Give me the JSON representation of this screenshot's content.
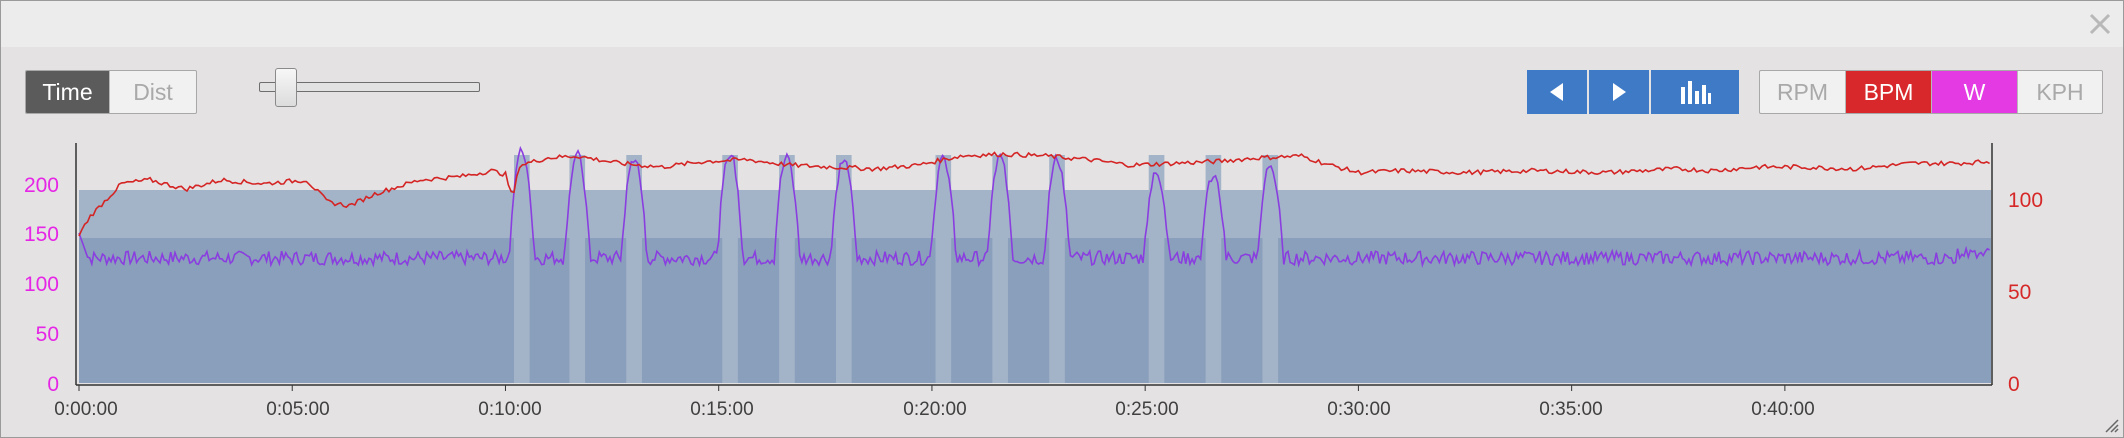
{
  "window": {
    "close_icon": "close-icon"
  },
  "mode_toggle": {
    "time_label": "Time",
    "dist_label": "Dist",
    "selected": "Time"
  },
  "zoom_slider": {
    "value": 0.1
  },
  "nav": {
    "prev_icon": "triangle-left-icon",
    "next_icon": "triangle-right-icon",
    "bars_icon": "bar-chart-icon"
  },
  "metrics": {
    "rpm_label": "RPM",
    "bpm_label": "BPM",
    "w_label": "W",
    "kph_label": "KPH",
    "active": [
      "BPM",
      "W"
    ]
  },
  "colors": {
    "power_line": "#8a3ee0",
    "hr_line": "#d42424",
    "power_axis": "#e626e6",
    "hr_axis": "#d62828",
    "zone_light": "#a3b3c8",
    "zone_dark": "#8a9fbb",
    "nav_blue": "#3f7ac6"
  },
  "chart_data": {
    "type": "line",
    "x_label_format": "h:mm:ss",
    "xlim": [
      0,
      2690
    ],
    "x_ticks": [
      "0:00:00",
      "0:05:00",
      "0:10:00",
      "0:15:00",
      "0:20:00",
      "0:25:00",
      "0:30:00",
      "0:35:00",
      "0:40:00"
    ],
    "x_tick_values": [
      0,
      300,
      600,
      900,
      1200,
      1500,
      1800,
      2100,
      2400
    ],
    "y_left": {
      "ticks": [
        "0",
        "50",
        "100",
        "150",
        "200"
      ],
      "tick_values": [
        0,
        50,
        100,
        150,
        200
      ],
      "ylim": [
        0,
        240
      ]
    },
    "y_right": {
      "ticks": [
        "0",
        "50",
        "100"
      ],
      "tick_values": [
        0,
        50,
        100
      ],
      "ylim": [
        0,
        130
      ]
    },
    "zones": {
      "base_power": 193,
      "interval_power": 228
    },
    "interval_times": [
      612,
      690,
      770,
      905,
      985,
      1065,
      1205,
      1285,
      1365,
      1505,
      1585,
      1665
    ],
    "interval_width": 22,
    "power_recovery": 125,
    "power_peaks": [
      232,
      228,
      225,
      230,
      226,
      224,
      224,
      226,
      224,
      210,
      208,
      218
    ],
    "hr_points": [
      [
        0,
        80
      ],
      [
        15,
        90
      ],
      [
        60,
        108
      ],
      [
        100,
        110
      ],
      [
        150,
        105
      ],
      [
        200,
        110
      ],
      [
        260,
        108
      ],
      [
        320,
        110
      ],
      [
        350,
        98
      ],
      [
        380,
        96
      ],
      [
        420,
        103
      ],
      [
        480,
        110
      ],
      [
        540,
        112
      ],
      [
        580,
        115
      ],
      [
        600,
        113
      ],
      [
        610,
        100
      ],
      [
        620,
        118
      ],
      [
        660,
        122
      ],
      [
        700,
        123
      ],
      [
        760,
        119
      ],
      [
        820,
        117
      ],
      [
        880,
        120
      ],
      [
        940,
        121
      ],
      [
        1000,
        118
      ],
      [
        1060,
        117
      ],
      [
        1120,
        116
      ],
      [
        1180,
        118
      ],
      [
        1240,
        123
      ],
      [
        1300,
        124
      ],
      [
        1360,
        123
      ],
      [
        1420,
        121
      ],
      [
        1480,
        118
      ],
      [
        1540,
        119
      ],
      [
        1600,
        120
      ],
      [
        1660,
        122
      ],
      [
        1720,
        123
      ],
      [
        1760,
        118
      ],
      [
        1800,
        114
      ],
      [
        1860,
        115
      ],
      [
        1950,
        114
      ],
      [
        2050,
        115
      ],
      [
        2150,
        114
      ],
      [
        2250,
        116
      ],
      [
        2300,
        115
      ],
      [
        2360,
        117
      ],
      [
        2420,
        117
      ],
      [
        2500,
        116
      ],
      [
        2580,
        119
      ],
      [
        2640,
        119
      ],
      [
        2690,
        120
      ]
    ]
  }
}
